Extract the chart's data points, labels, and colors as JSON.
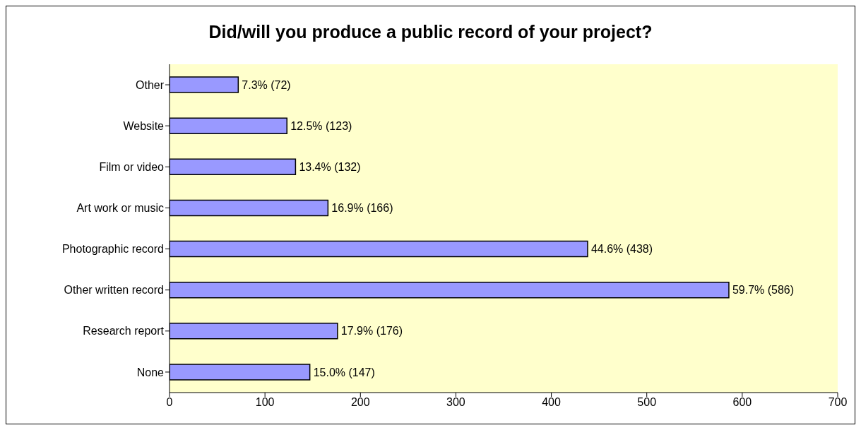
{
  "chart_data": {
    "type": "bar",
    "orientation": "horizontal",
    "title": "Did/will you produce a public record of your project?",
    "categories": [
      "Other",
      "Website",
      "Film or video",
      "Art work or music",
      "Photographic record",
      "Other written record",
      "Research report",
      "None"
    ],
    "values": [
      72,
      123,
      132,
      166,
      438,
      586,
      176,
      147
    ],
    "value_labels": [
      "7.3% (72)",
      "12.5% (123)",
      "13.4% (132)",
      "16.9% (166)",
      "44.6% (438)",
      "59.7% (586)",
      "17.9% (176)",
      "15.0% (147)"
    ],
    "color": "#9999ff",
    "xlim": [
      0,
      700
    ],
    "xticks": [
      0,
      100,
      200,
      300,
      400,
      500,
      600,
      700
    ],
    "grid": false
  }
}
